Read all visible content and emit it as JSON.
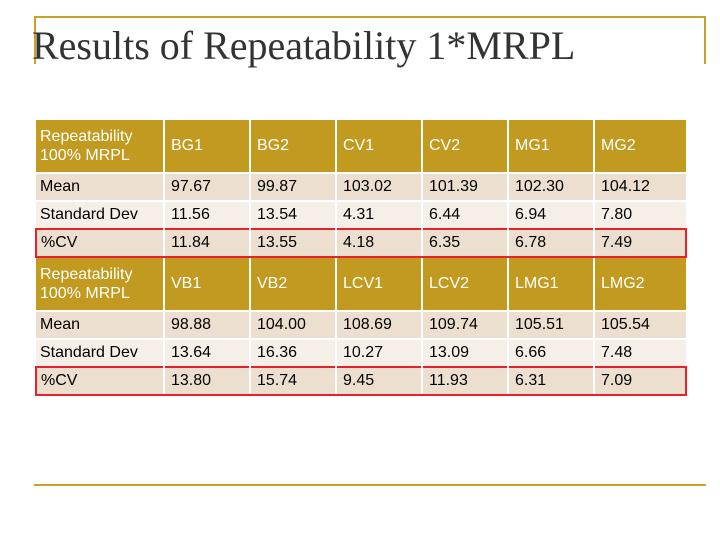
{
  "title": "Results of Repeatability 1*MRPL",
  "tables": [
    {
      "header": [
        "Repeatability 100% MRPL",
        "BG1",
        "BG2",
        "CV1",
        "CV2",
        "MG1",
        "MG2"
      ],
      "rows": [
        {
          "label": "Mean",
          "values": [
            "97.67",
            "99.87",
            "103.02",
            "101.39",
            "102.30",
            "104.12"
          ]
        },
        {
          "label": "Standard Dev",
          "values": [
            "11.56",
            "13.54",
            "4.31",
            "6.44",
            "6.94",
            "7.80"
          ]
        },
        {
          "label": "%CV",
          "values": [
            "11.84",
            "13.55",
            "4.18",
            "6.35",
            "6.78",
            "7.49"
          ]
        }
      ]
    },
    {
      "header": [
        "Repeatability 100% MRPL",
        "VB1",
        "VB2",
        "LCV1",
        "LCV2",
        "LMG1",
        "LMG2"
      ],
      "rows": [
        {
          "label": "Mean",
          "values": [
            "98.88",
            "104.00",
            "108.69",
            "109.74",
            "105.51",
            "105.54"
          ]
        },
        {
          "label": "Standard Dev",
          "values": [
            "13.64",
            "16.36",
            "10.27",
            "13.09",
            "6.66",
            "7.48"
          ]
        },
        {
          "label": "%CV",
          "values": [
            "13.80",
            "15.74",
            "9.45",
            "11.93",
            "6.31",
            "7.09"
          ]
        }
      ]
    }
  ],
  "colors": {
    "header_bg": "#c19a1f",
    "row_odd": "#ecdfd0",
    "row_even": "#f5efe8",
    "highlight_border": "#e8202a",
    "accent_line": "#c9a227"
  }
}
